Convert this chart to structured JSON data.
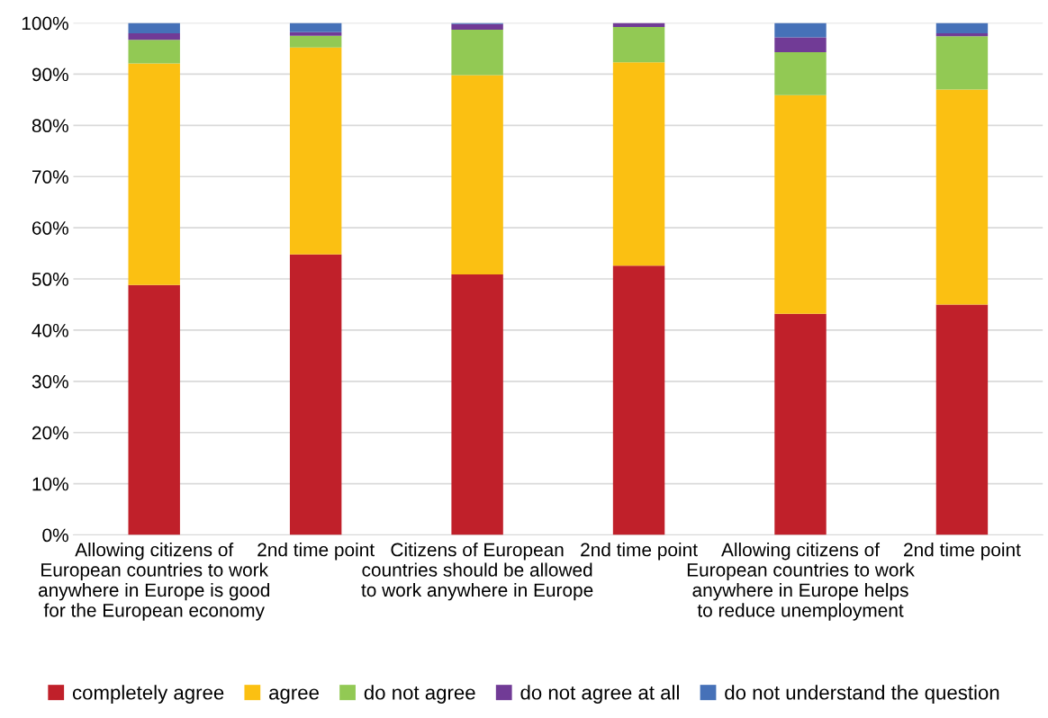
{
  "chart_data": {
    "type": "bar",
    "stacked": true,
    "categories": [
      "Allowing citizens of European countries to work anywhere in Europe is good for the European economy",
      "2nd time point",
      "Citizens of European countries should be allowed to work anywhere in Europe",
      "2nd time point",
      "Allowing citizens of European countries to work anywhere in Europe helps to reduce unemployment",
      "2nd time point"
    ],
    "series": [
      {
        "name": "completely agree",
        "color": "#c0202a",
        "values": [
          48.8,
          54.8,
          50.9,
          52.6,
          43.2,
          45.0
        ]
      },
      {
        "name": "agree",
        "color": "#fbc012",
        "values": [
          43.3,
          40.4,
          38.9,
          39.7,
          42.7,
          42.0
        ]
      },
      {
        "name": "do not agree",
        "color": "#92c954",
        "values": [
          4.6,
          2.3,
          8.9,
          6.9,
          8.4,
          10.4
        ]
      },
      {
        "name": "do not agree at all",
        "color": "#713b96",
        "values": [
          1.3,
          0.7,
          1.1,
          0.8,
          2.9,
          0.6
        ]
      },
      {
        "name": "do not understand the question",
        "color": "#4671b8",
        "values": [
          2.0,
          1.8,
          0.2,
          0.0,
          2.8,
          2.0
        ]
      }
    ],
    "ylim": [
      0,
      100
    ],
    "yticks": [
      {
        "value": 0,
        "label": "0%"
      },
      {
        "value": 10,
        "label": "10%"
      },
      {
        "value": 20,
        "label": "20%"
      },
      {
        "value": 30,
        "label": "30%"
      },
      {
        "value": 40,
        "label": "40%"
      },
      {
        "value": 50,
        "label": "50%"
      },
      {
        "value": 60,
        "label": "60%"
      },
      {
        "value": 70,
        "label": "70%"
      },
      {
        "value": 80,
        "label": "80%"
      },
      {
        "value": 90,
        "label": "90%"
      },
      {
        "value": 100,
        "label": "100%"
      }
    ],
    "grid": "y",
    "legend": "bottom"
  }
}
